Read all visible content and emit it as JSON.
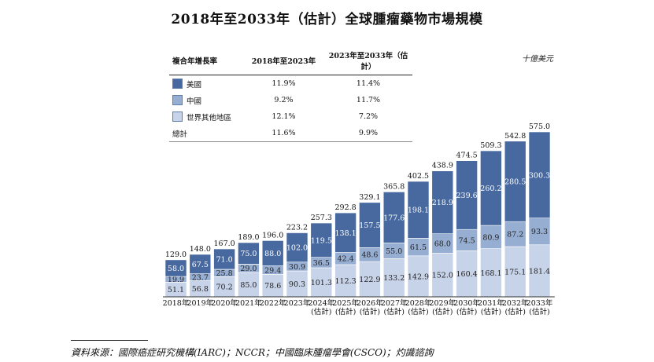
{
  "title": "2018年至2033年（估計）全球腫瘤藥物市場規模",
  "unit": "十億美元",
  "growth_table": {
    "headers": [
      "複合年增長率",
      "2018年至2023年",
      "2023年至2033年（估計）"
    ],
    "rows": [
      {
        "label": "美國",
        "cagr1": "11.9%",
        "cagr2": "11.4%",
        "color": "#4769a0"
      },
      {
        "label": "中國",
        "cagr1": "9.2%",
        "cagr2": "11.7%",
        "color": "#97aed3"
      },
      {
        "label": "世界其他地區",
        "cagr1": "12.1%",
        "cagr2": "7.2%",
        "color": "#c7d3e8"
      },
      {
        "label": "總計",
        "cagr1": "11.6%",
        "cagr2": "9.9%",
        "color": ""
      }
    ]
  },
  "chart_data": {
    "type": "bar",
    "stacked": true,
    "categories": [
      "2018年",
      "2019年",
      "2020年",
      "2021年",
      "2022年",
      "2023年",
      "2024年\n(估計)",
      "2025年\n(估計)",
      "2026年\n(估計)",
      "2027年\n(估計)",
      "2028年\n(估計)",
      "2029年\n(估計)",
      "2030年\n(估計)",
      "2031年\n(估計)",
      "2032年\n(估計)",
      "2033年\n(估計)"
    ],
    "series": [
      {
        "name": "世界其他地區",
        "color": "#c7d3e8",
        "label_color": "#222222",
        "values": [
          51.1,
          56.8,
          70.2,
          85.0,
          78.6,
          90.3,
          101.3,
          112.3,
          122.9,
          133.2,
          142.9,
          152.0,
          160.4,
          168.1,
          175.1,
          181.4
        ]
      },
      {
        "name": "中國",
        "color": "#97aed3",
        "label_color": "#222222",
        "values": [
          19.9,
          23.7,
          25.8,
          29.0,
          29.4,
          30.9,
          36.5,
          42.4,
          48.6,
          55.0,
          61.5,
          68.0,
          74.5,
          80.9,
          87.2,
          93.3
        ]
      },
      {
        "name": "美國",
        "color": "#4769a0",
        "label_color": "#ffffff",
        "values": [
          58.0,
          67.5,
          71.0,
          75.0,
          88.0,
          102.0,
          119.5,
          138.1,
          157.5,
          177.6,
          198.1,
          218.9,
          239.6,
          260.2,
          280.5,
          300.3
        ]
      }
    ],
    "totals": [
      129.0,
      148.0,
      167.0,
      189.0,
      196.0,
      223.2,
      257.3,
      292.8,
      329.1,
      365.8,
      402.5,
      438.9,
      474.5,
      509.3,
      542.8,
      575.0
    ],
    "ylim": [
      0,
      575.0
    ],
    "grid": false,
    "legend": "top-left table"
  },
  "source": "資料來源：國際癌症研究機構(IARC)；NCCR；中國臨床腫瘤學會(CSCO)；灼識諮詢"
}
